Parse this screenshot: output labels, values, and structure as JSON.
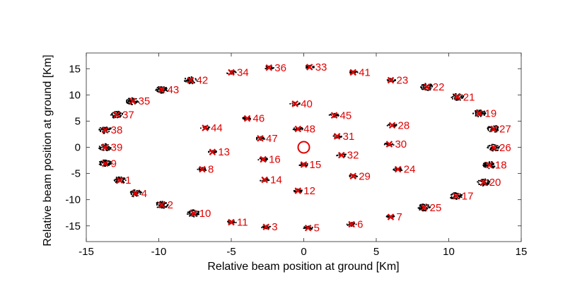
{
  "chart_data": {
    "type": "scatter",
    "xlabel": "Relative beam position at ground [Km]",
    "ylabel": "Relative beam position at ground [Km]",
    "xlim": [
      -15,
      15
    ],
    "ylim": [
      -18,
      18
    ],
    "xticks": [
      -15,
      -10,
      -5,
      0,
      5,
      10,
      15
    ],
    "yticks": [
      -15,
      -10,
      -5,
      0,
      5,
      10,
      15
    ],
    "grid": false,
    "colors": {
      "marker": "#e00000",
      "cluster": "#000000",
      "center": "#e00000"
    },
    "center": {
      "x": 0,
      "y": 0
    },
    "beams": [
      {
        "id": "1",
        "x": -12.7,
        "y": -6.3
      },
      {
        "id": "2",
        "x": -9.8,
        "y": -11.0
      },
      {
        "id": "3",
        "x": -2.6,
        "y": -15.2
      },
      {
        "id": "4",
        "x": -11.6,
        "y": -8.8
      },
      {
        "id": "5",
        "x": 0.3,
        "y": -15.4
      },
      {
        "id": "6",
        "x": 3.3,
        "y": -14.7
      },
      {
        "id": "7",
        "x": 6.0,
        "y": -13.3
      },
      {
        "id": "8",
        "x": -7.0,
        "y": -4.2
      },
      {
        "id": "9",
        "x": -13.7,
        "y": -3.1
      },
      {
        "id": "10",
        "x": -7.6,
        "y": -12.6
      },
      {
        "id": "11",
        "x": -5.0,
        "y": -14.3
      },
      {
        "id": "12",
        "x": -0.4,
        "y": -8.3
      },
      {
        "id": "13",
        "x": -6.3,
        "y": -0.9
      },
      {
        "id": "14",
        "x": -2.7,
        "y": -6.2
      },
      {
        "id": "15",
        "x": 0.0,
        "y": -3.3
      },
      {
        "id": "16",
        "x": -2.8,
        "y": -2.3
      },
      {
        "id": "17",
        "x": 10.5,
        "y": -9.3
      },
      {
        "id": "18",
        "x": 12.8,
        "y": -3.4
      },
      {
        "id": "19",
        "x": 12.1,
        "y": 6.5
      },
      {
        "id": "20",
        "x": 12.4,
        "y": -6.7
      },
      {
        "id": "21",
        "x": 10.6,
        "y": 9.6
      },
      {
        "id": "22",
        "x": 8.5,
        "y": 11.5
      },
      {
        "id": "23",
        "x": 6.0,
        "y": 12.8
      },
      {
        "id": "24",
        "x": 6.5,
        "y": -4.2
      },
      {
        "id": "25",
        "x": 8.3,
        "y": -11.5
      },
      {
        "id": "26",
        "x": 13.1,
        "y": -0.1
      },
      {
        "id": "27",
        "x": 13.1,
        "y": 3.5
      },
      {
        "id": "28",
        "x": 6.1,
        "y": 4.2
      },
      {
        "id": "29",
        "x": 3.4,
        "y": -5.5
      },
      {
        "id": "30",
        "x": 5.9,
        "y": 0.6
      },
      {
        "id": "31",
        "x": 2.3,
        "y": 2.1
      },
      {
        "id": "32",
        "x": 2.6,
        "y": -1.5
      },
      {
        "id": "33",
        "x": 0.4,
        "y": 15.3
      },
      {
        "id": "34",
        "x": -5.0,
        "y": 14.3
      },
      {
        "id": "35",
        "x": -11.8,
        "y": 8.8
      },
      {
        "id": "36",
        "x": -2.4,
        "y": 15.2
      },
      {
        "id": "37",
        "x": -12.9,
        "y": 6.2
      },
      {
        "id": "38",
        "x": -13.7,
        "y": 3.3
      },
      {
        "id": "39",
        "x": -13.7,
        "y": 0.0
      },
      {
        "id": "40",
        "x": -0.6,
        "y": 8.3
      },
      {
        "id": "41",
        "x": 3.4,
        "y": 14.3
      },
      {
        "id": "42",
        "x": -7.8,
        "y": 12.8
      },
      {
        "id": "43",
        "x": -9.8,
        "y": 11.0
      },
      {
        "id": "44",
        "x": -6.8,
        "y": 3.7
      },
      {
        "id": "45",
        "x": 2.1,
        "y": 6.1
      },
      {
        "id": "46",
        "x": -3.9,
        "y": 5.5
      },
      {
        "id": "47",
        "x": -3.0,
        "y": 1.7
      },
      {
        "id": "48",
        "x": -0.4,
        "y": 3.5
      }
    ]
  }
}
